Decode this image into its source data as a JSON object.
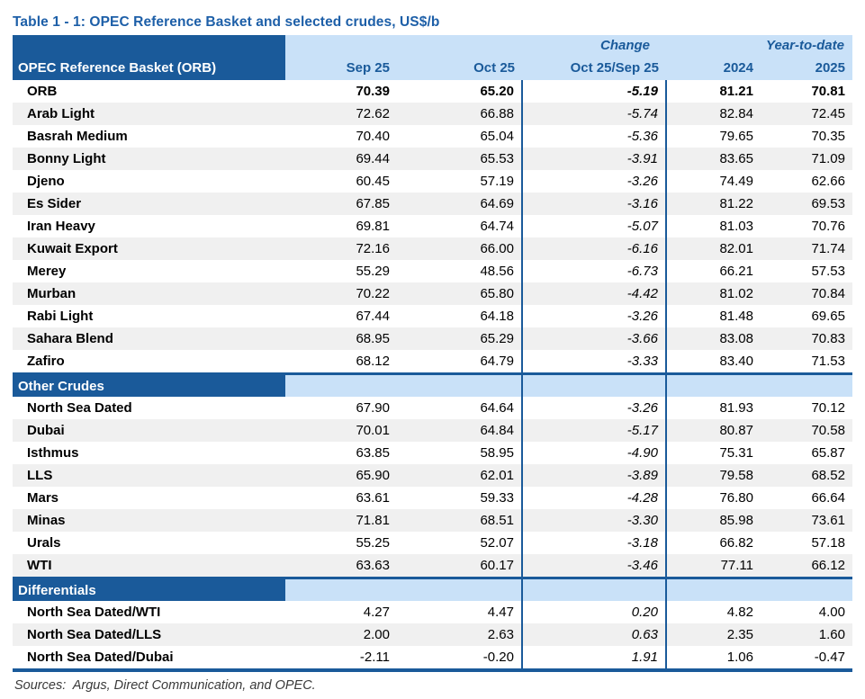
{
  "title": "Table 1 - 1: OPEC Reference Basket and selected crudes, US$/b",
  "colors": {
    "dark_blue": "#1a5a9a",
    "light_blue": "#c9e1f8",
    "stripe_gray": "#f0f0f0",
    "title_blue": "#1d5fa8"
  },
  "header": {
    "change_group": "Change",
    "ytd_group": "Year-to-date",
    "col1": "OPEC Reference Basket (ORB)",
    "col2": "Sep 25",
    "col3": "Oct 25",
    "col4": "Oct 25/Sep 25",
    "col5": "2024",
    "col6": "2025"
  },
  "sections": [
    {
      "label": null,
      "rows": [
        {
          "name": "ORB",
          "values": [
            "70.39",
            "65.20",
            "-5.19",
            "81.21",
            "70.81"
          ],
          "bold": true
        },
        {
          "name": "Arab Light",
          "values": [
            "72.62",
            "66.88",
            "-5.74",
            "82.84",
            "72.45"
          ]
        },
        {
          "name": "Basrah Medium",
          "values": [
            "70.40",
            "65.04",
            "-5.36",
            "79.65",
            "70.35"
          ]
        },
        {
          "name": "Bonny Light",
          "values": [
            "69.44",
            "65.53",
            "-3.91",
            "83.65",
            "71.09"
          ]
        },
        {
          "name": "Djeno",
          "values": [
            "60.45",
            "57.19",
            "-3.26",
            "74.49",
            "62.66"
          ]
        },
        {
          "name": "Es Sider",
          "values": [
            "67.85",
            "64.69",
            "-3.16",
            "81.22",
            "69.53"
          ]
        },
        {
          "name": "Iran Heavy",
          "values": [
            "69.81",
            "64.74",
            "-5.07",
            "81.03",
            "70.76"
          ]
        },
        {
          "name": "Kuwait Export",
          "values": [
            "72.16",
            "66.00",
            "-6.16",
            "82.01",
            "71.74"
          ]
        },
        {
          "name": "Merey",
          "values": [
            "55.29",
            "48.56",
            "-6.73",
            "66.21",
            "57.53"
          ]
        },
        {
          "name": "Murban",
          "values": [
            "70.22",
            "65.80",
            "-4.42",
            "81.02",
            "70.84"
          ]
        },
        {
          "name": "Rabi Light",
          "values": [
            "67.44",
            "64.18",
            "-3.26",
            "81.48",
            "69.65"
          ]
        },
        {
          "name": "Sahara Blend",
          "values": [
            "68.95",
            "65.29",
            "-3.66",
            "83.08",
            "70.83"
          ]
        },
        {
          "name": "Zafiro",
          "values": [
            "68.12",
            "64.79",
            "-3.33",
            "83.40",
            "71.53"
          ]
        }
      ]
    },
    {
      "label": "Other Crudes",
      "rows": [
        {
          "name": "North Sea Dated",
          "values": [
            "67.90",
            "64.64",
            "-3.26",
            "81.93",
            "70.12"
          ]
        },
        {
          "name": "Dubai",
          "values": [
            "70.01",
            "64.84",
            "-5.17",
            "80.87",
            "70.58"
          ]
        },
        {
          "name": "Isthmus",
          "values": [
            "63.85",
            "58.95",
            "-4.90",
            "75.31",
            "65.87"
          ]
        },
        {
          "name": "LLS",
          "values": [
            "65.90",
            "62.01",
            "-3.89",
            "79.58",
            "68.52"
          ]
        },
        {
          "name": "Mars",
          "values": [
            "63.61",
            "59.33",
            "-4.28",
            "76.80",
            "66.64"
          ]
        },
        {
          "name": "Minas",
          "values": [
            "71.81",
            "68.51",
            "-3.30",
            "85.98",
            "73.61"
          ]
        },
        {
          "name": "Urals",
          "values": [
            "55.25",
            "52.07",
            "-3.18",
            "66.82",
            "57.18"
          ]
        },
        {
          "name": "WTI",
          "values": [
            "63.63",
            "60.17",
            "-3.46",
            "77.11",
            "66.12"
          ]
        }
      ]
    },
    {
      "label": "Differentials",
      "rows": [
        {
          "name": "North Sea Dated/WTI",
          "values": [
            "4.27",
            "4.47",
            "0.20",
            "4.82",
            "4.00"
          ]
        },
        {
          "name": "North Sea Dated/LLS",
          "values": [
            "2.00",
            "2.63",
            "0.63",
            "2.35",
            "1.60"
          ]
        },
        {
          "name": "North Sea Dated/Dubai",
          "values": [
            "-2.11",
            "-0.20",
            "1.91",
            "1.06",
            "-0.47"
          ]
        }
      ]
    }
  ],
  "sources": "Sources:  Argus, Direct Communication, and OPEC."
}
